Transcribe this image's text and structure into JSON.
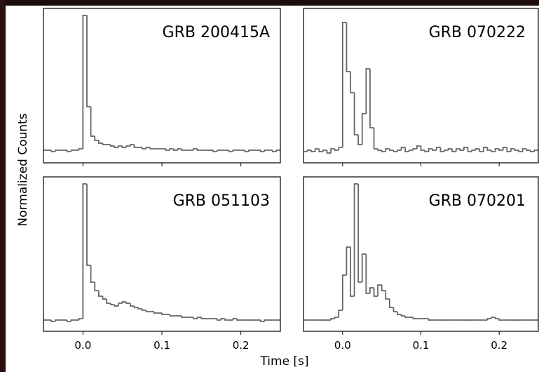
{
  "figure": {
    "ylabel": "Normalized Counts",
    "xlabel": "Time [s]"
  },
  "chart_data": [
    {
      "type": "histogram",
      "title": "GRB 200415A",
      "color": "#666666",
      "bins": [
        -0.05,
        -0.045,
        -0.04,
        -0.035,
        -0.03,
        -0.025,
        -0.02,
        -0.015,
        -0.01,
        -0.005,
        0,
        0.005,
        0.01,
        0.015,
        0.02,
        0.025,
        0.03,
        0.035,
        0.04,
        0.045,
        0.05,
        0.055,
        0.06,
        0.065,
        0.07,
        0.075,
        0.08,
        0.085,
        0.09,
        0.095,
        0.1,
        0.105,
        0.11,
        0.115,
        0.12,
        0.125,
        0.13,
        0.135,
        0.14,
        0.145,
        0.15,
        0.155,
        0.16,
        0.165,
        0.17,
        0.175,
        0.18,
        0.185,
        0.19,
        0.195,
        0.2,
        0.205,
        0.21,
        0.215,
        0.22,
        0.225,
        0.23,
        0.235,
        0.24,
        0.245,
        0.25
      ],
      "values": [
        0.04,
        0.04,
        0.03,
        0.04,
        0.04,
        0.04,
        0.03,
        0.04,
        0.04,
        0.05,
        1.0,
        0.35,
        0.14,
        0.11,
        0.09,
        0.08,
        0.08,
        0.07,
        0.06,
        0.07,
        0.06,
        0.07,
        0.08,
        0.06,
        0.06,
        0.05,
        0.06,
        0.05,
        0.05,
        0.05,
        0.05,
        0.04,
        0.05,
        0.04,
        0.05,
        0.04,
        0.04,
        0.04,
        0.05,
        0.04,
        0.04,
        0.04,
        0.04,
        0.03,
        0.04,
        0.04,
        0.04,
        0.03,
        0.04,
        0.04,
        0.04,
        0.03,
        0.04,
        0.04,
        0.04,
        0.03,
        0.04,
        0.04,
        0.03,
        0.04
      ],
      "xlim": [
        -0.05,
        0.25
      ],
      "ylim": [
        -0.05,
        1.05
      ],
      "xticks": [
        0,
        0.1,
        0.2
      ]
    },
    {
      "type": "histogram",
      "title": "GRB 070222",
      "color": "#666666",
      "bins": [
        -0.05,
        -0.045,
        -0.04,
        -0.035,
        -0.03,
        -0.025,
        -0.02,
        -0.015,
        -0.01,
        -0.005,
        0,
        0.005,
        0.01,
        0.015,
        0.02,
        0.025,
        0.03,
        0.035,
        0.04,
        0.045,
        0.05,
        0.055,
        0.06,
        0.065,
        0.07,
        0.075,
        0.08,
        0.085,
        0.09,
        0.095,
        0.1,
        0.105,
        0.11,
        0.115,
        0.12,
        0.125,
        0.13,
        0.135,
        0.14,
        0.145,
        0.15,
        0.155,
        0.16,
        0.165,
        0.17,
        0.175,
        0.18,
        0.185,
        0.19,
        0.195,
        0.2,
        0.205,
        0.21,
        0.215,
        0.22,
        0.225,
        0.23,
        0.235,
        0.24,
        0.245,
        0.25
      ],
      "values": [
        0.03,
        0.04,
        0.03,
        0.05,
        0.03,
        0.04,
        0.02,
        0.05,
        0.04,
        0.06,
        0.95,
        0.6,
        0.45,
        0.15,
        0.08,
        0.3,
        0.62,
        0.2,
        0.05,
        0.04,
        0.03,
        0.05,
        0.04,
        0.03,
        0.04,
        0.06,
        0.03,
        0.04,
        0.05,
        0.07,
        0.04,
        0.03,
        0.05,
        0.04,
        0.06,
        0.03,
        0.04,
        0.05,
        0.03,
        0.05,
        0.04,
        0.06,
        0.03,
        0.04,
        0.05,
        0.03,
        0.06,
        0.04,
        0.03,
        0.05,
        0.04,
        0.06,
        0.03,
        0.05,
        0.04,
        0.03,
        0.05,
        0.04,
        0.03,
        0.04
      ],
      "xlim": [
        -0.05,
        0.25
      ],
      "ylim": [
        -0.05,
        1.05
      ],
      "xticks": [
        0,
        0.1,
        0.2
      ]
    },
    {
      "type": "histogram",
      "title": "GRB 051103",
      "color": "#666666",
      "bins": [
        -0.05,
        -0.045,
        -0.04,
        -0.035,
        -0.03,
        -0.025,
        -0.02,
        -0.015,
        -0.01,
        -0.005,
        0,
        0.005,
        0.01,
        0.015,
        0.02,
        0.025,
        0.03,
        0.035,
        0.04,
        0.045,
        0.05,
        0.055,
        0.06,
        0.065,
        0.07,
        0.075,
        0.08,
        0.085,
        0.09,
        0.095,
        0.1,
        0.105,
        0.11,
        0.115,
        0.12,
        0.125,
        0.13,
        0.135,
        0.14,
        0.145,
        0.15,
        0.155,
        0.16,
        0.165,
        0.17,
        0.175,
        0.18,
        0.185,
        0.19,
        0.195,
        0.2,
        0.205,
        0.21,
        0.215,
        0.22,
        0.225,
        0.23,
        0.235,
        0.24,
        0.245,
        0.25
      ],
      "values": [
        0.03,
        0.03,
        0.02,
        0.03,
        0.03,
        0.03,
        0.02,
        0.03,
        0.03,
        0.04,
        1.0,
        0.42,
        0.3,
        0.24,
        0.2,
        0.18,
        0.15,
        0.14,
        0.13,
        0.15,
        0.16,
        0.15,
        0.13,
        0.12,
        0.11,
        0.1,
        0.09,
        0.09,
        0.08,
        0.08,
        0.07,
        0.07,
        0.06,
        0.06,
        0.06,
        0.05,
        0.05,
        0.05,
        0.04,
        0.05,
        0.04,
        0.04,
        0.04,
        0.04,
        0.03,
        0.04,
        0.03,
        0.03,
        0.04,
        0.03,
        0.03,
        0.03,
        0.03,
        0.03,
        0.03,
        0.02,
        0.03,
        0.03,
        0.03,
        0.03
      ],
      "xlim": [
        -0.05,
        0.25
      ],
      "ylim": [
        -0.05,
        1.05
      ],
      "xticks": [
        {
          "value": 0,
          "label": "0.0"
        },
        {
          "value": 0.1,
          "label": "0.1"
        },
        {
          "value": 0.2,
          "label": "0.2"
        }
      ]
    },
    {
      "type": "histogram",
      "title": "GRB 070201",
      "color": "#666666",
      "bins": [
        -0.05,
        -0.045,
        -0.04,
        -0.035,
        -0.03,
        -0.025,
        -0.02,
        -0.015,
        -0.01,
        -0.005,
        0,
        0.005,
        0.01,
        0.015,
        0.02,
        0.025,
        0.03,
        0.035,
        0.04,
        0.045,
        0.05,
        0.055,
        0.06,
        0.065,
        0.07,
        0.075,
        0.08,
        0.085,
        0.09,
        0.095,
        0.1,
        0.105,
        0.11,
        0.115,
        0.12,
        0.125,
        0.13,
        0.135,
        0.14,
        0.145,
        0.15,
        0.155,
        0.16,
        0.165,
        0.17,
        0.175,
        0.18,
        0.185,
        0.19,
        0.195,
        0.2,
        0.205,
        0.21,
        0.215,
        0.22,
        0.225,
        0.23,
        0.235,
        0.24,
        0.245,
        0.25
      ],
      "values": [
        0.03,
        0.03,
        0.03,
        0.03,
        0.03,
        0.03,
        0.03,
        0.04,
        0.05,
        0.1,
        0.35,
        0.55,
        0.2,
        1.0,
        0.3,
        0.5,
        0.22,
        0.26,
        0.2,
        0.28,
        0.24,
        0.18,
        0.12,
        0.09,
        0.07,
        0.06,
        0.05,
        0.05,
        0.04,
        0.04,
        0.04,
        0.04,
        0.03,
        0.03,
        0.03,
        0.03,
        0.03,
        0.03,
        0.03,
        0.03,
        0.03,
        0.03,
        0.03,
        0.03,
        0.03,
        0.03,
        0.03,
        0.04,
        0.05,
        0.04,
        0.03,
        0.03,
        0.03,
        0.03,
        0.03,
        0.03,
        0.03,
        0.03,
        0.03,
        0.03
      ],
      "xlim": [
        -0.05,
        0.25
      ],
      "ylim": [
        -0.05,
        1.05
      ],
      "xticks": [
        {
          "value": 0,
          "label": "0.0"
        },
        {
          "value": 0.1,
          "label": "0.1"
        },
        {
          "value": 0.2,
          "label": "0.2"
        }
      ]
    }
  ]
}
